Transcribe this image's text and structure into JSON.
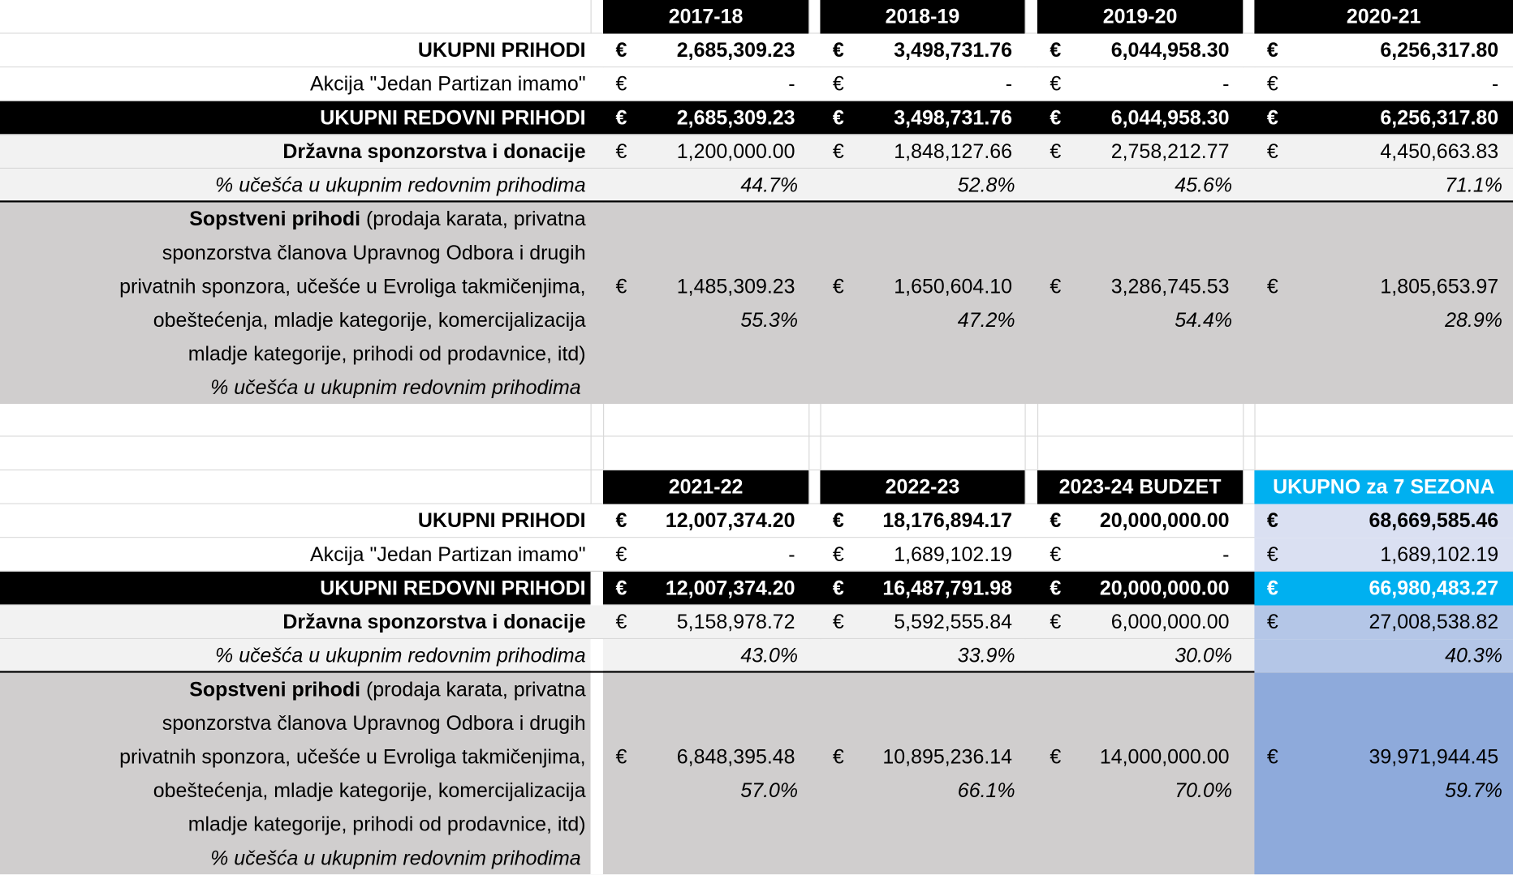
{
  "currency": "€",
  "colors": {
    "header_bg": "#000000",
    "header_text": "#ffffff",
    "total_header": "#00b0f0",
    "total_light": "#dae0f2",
    "total_mid": "#b4c6e7",
    "total_dark": "#8eaadb",
    "light_row": "#f2f2f2",
    "gray_row": "#d0cece"
  },
  "labels": {
    "total": "UKUPNI PRIHODI",
    "akcija": "Akcija \"Jedan Partizan imamo\"",
    "regular": "UKUPNI REDOVNI PRIHODI",
    "state": "Državna sponzorstva i donacije",
    "share": "% učešća u ukupnim redovnim prihodima",
    "own_bold": "Sopstveni prihodi",
    "own_lines": [
      " (prodaja karata, privatna",
      "sponzorstva članova Upravnog Odbora i drugih",
      "privatnih sponzora, učešće u Evroliga takmičenjima,",
      "obeštećenja, mladje kategorije, komercijalizacija",
      "mladje kategorije, prihodi od prodavnice, itd)",
      "% učešća u ukupnim redovnim prihodima"
    ]
  },
  "sections": [
    {
      "headers": [
        "2017-18",
        "2018-19",
        "2019-20",
        "2020-21"
      ],
      "total": [
        "2,685,309.23",
        "3,498,731.76",
        "6,044,958.30",
        "6,256,317.80"
      ],
      "akcija": [
        "-",
        "-",
        "-",
        "-"
      ],
      "regular": [
        "2,685,309.23",
        "3,498,731.76",
        "6,044,958.30",
        "6,256,317.80"
      ],
      "state": [
        "1,200,000.00",
        "1,848,127.66",
        "2,758,212.77",
        "4,450,663.83"
      ],
      "state_share": [
        "44.7%",
        "52.8%",
        "45.6%",
        "71.1%"
      ],
      "own": [
        "1,485,309.23",
        "1,650,604.10",
        "3,286,745.53",
        "1,805,653.97"
      ],
      "own_share": [
        "55.3%",
        "47.2%",
        "54.4%",
        "28.9%"
      ]
    },
    {
      "headers": [
        "2021-22",
        "2022-23",
        "2023-24 BUDZET",
        "UKUPNO za 7 SEZONA"
      ],
      "total": [
        "12,007,374.20",
        "18,176,894.17",
        "20,000,000.00",
        "68,669,585.46"
      ],
      "akcija": [
        "-",
        "1,689,102.19",
        "-",
        "1,689,102.19"
      ],
      "regular": [
        "12,007,374.20",
        "16,487,791.98",
        "20,000,000.00",
        "66,980,483.27"
      ],
      "state": [
        "5,158,978.72",
        "5,592,555.84",
        "6,000,000.00",
        "27,008,538.82"
      ],
      "state_share": [
        "43.0%",
        "33.9%",
        "30.0%",
        "40.3%"
      ],
      "own": [
        "6,848,395.48",
        "10,895,236.14",
        "14,000,000.00",
        "39,971,944.45"
      ],
      "own_share": [
        "57.0%",
        "66.1%",
        "70.0%",
        "59.7%"
      ]
    }
  ]
}
